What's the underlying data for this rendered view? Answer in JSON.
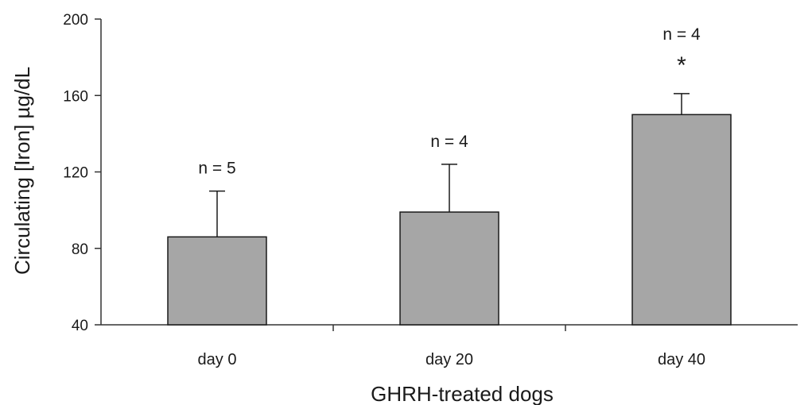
{
  "chart_data": {
    "type": "bar",
    "title": "",
    "xlabel": "GHRH-treated dogs",
    "ylabel": "Circulating [Iron] µg/dL",
    "ylim": [
      40,
      200
    ],
    "yticks": [
      "40",
      "80",
      "120",
      "160",
      "200"
    ],
    "categories": [
      "day 0",
      "day 20",
      "day 40"
    ],
    "values": [
      86,
      99,
      150
    ],
    "error_upper": [
      110,
      124,
      161
    ],
    "annotations": [
      "n = 5",
      "n = 4",
      "n = 4"
    ],
    "significance": [
      "",
      "",
      "*"
    ],
    "bar_color": "#a6a6a6",
    "grid": false,
    "legend": "none"
  }
}
